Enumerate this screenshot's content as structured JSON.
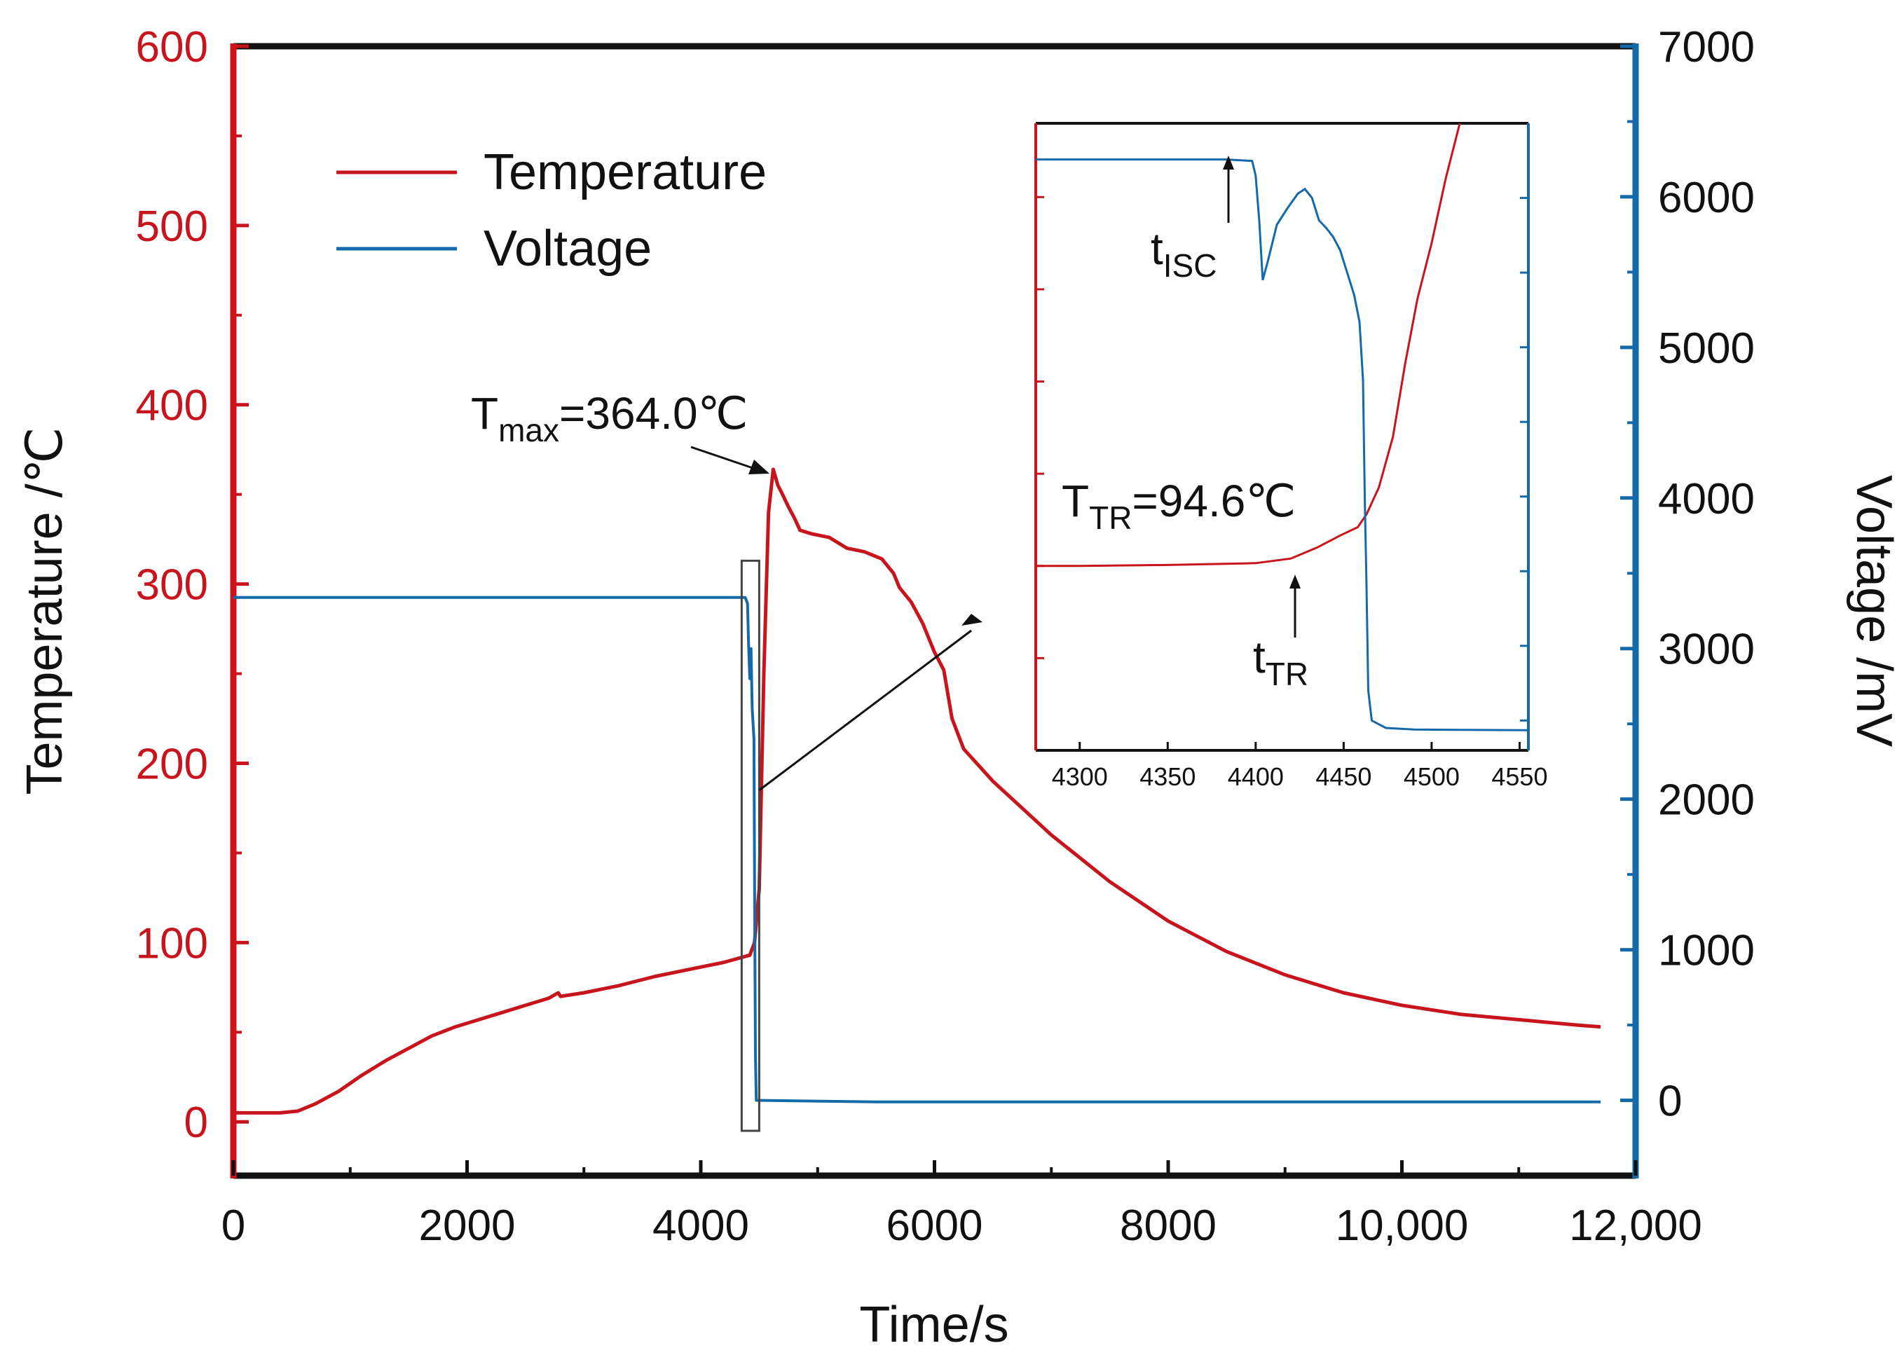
{
  "chart_data": {
    "type": "line",
    "title": "",
    "xlabel": "Time/s",
    "ylabel_left": "Temperature /℃",
    "ylabel_right": "Voltage /mV",
    "xlim": [
      0,
      12000
    ],
    "ylim_left": [
      -30,
      600
    ],
    "ylim_right": [
      -500,
      7000
    ],
    "grid": false,
    "legend_position": "top-left",
    "x_ticks": [
      {
        "value": 0,
        "label": "0"
      },
      {
        "value": 2000,
        "label": "2000"
      },
      {
        "value": 4000,
        "label": "4000"
      },
      {
        "value": 6000,
        "label": "6000"
      },
      {
        "value": 8000,
        "label": "8000"
      },
      {
        "value": 10000,
        "label": "10,000"
      },
      {
        "value": 12000,
        "label": "12,000"
      }
    ],
    "y_left_ticks": [
      {
        "value": 0,
        "label": "0"
      },
      {
        "value": 100,
        "label": "100"
      },
      {
        "value": 200,
        "label": "200"
      },
      {
        "value": 300,
        "label": "300"
      },
      {
        "value": 400,
        "label": "400"
      },
      {
        "value": 500,
        "label": "500"
      },
      {
        "value": 600,
        "label": "600"
      }
    ],
    "y_right_ticks": [
      {
        "value": 0,
        "label": "0"
      },
      {
        "value": 1000,
        "label": "1000"
      },
      {
        "value": 2000,
        "label": "2000"
      },
      {
        "value": 3000,
        "label": "3000"
      },
      {
        "value": 4000,
        "label": "4000"
      },
      {
        "value": 5000,
        "label": "5000"
      },
      {
        "value": 6000,
        "label": "6000"
      },
      {
        "value": 7000,
        "label": "7000"
      }
    ],
    "series": [
      {
        "name": "Temperature",
        "axis": "left",
        "color": "#c8141c",
        "points": [
          [
            0,
            5
          ],
          [
            400,
            5
          ],
          [
            550,
            6
          ],
          [
            700,
            10
          ],
          [
            900,
            17
          ],
          [
            1100,
            26
          ],
          [
            1300,
            34
          ],
          [
            1500,
            41
          ],
          [
            1700,
            48
          ],
          [
            1900,
            53
          ],
          [
            2100,
            57
          ],
          [
            2300,
            61
          ],
          [
            2500,
            65
          ],
          [
            2700,
            69
          ],
          [
            2780,
            72
          ],
          [
            2800,
            70
          ],
          [
            3000,
            72
          ],
          [
            3300,
            76
          ],
          [
            3600,
            81
          ],
          [
            3900,
            85
          ],
          [
            4200,
            89
          ],
          [
            4420,
            93
          ],
          [
            4460,
            100
          ],
          [
            4500,
            130
          ],
          [
            4540,
            250
          ],
          [
            4580,
            340
          ],
          [
            4620,
            364
          ],
          [
            4660,
            355
          ],
          [
            4700,
            350
          ],
          [
            4750,
            343
          ],
          [
            4800,
            337
          ],
          [
            4850,
            330
          ],
          [
            4950,
            328
          ],
          [
            5100,
            326
          ],
          [
            5250,
            320
          ],
          [
            5400,
            318
          ],
          [
            5550,
            314
          ],
          [
            5650,
            306
          ],
          [
            5700,
            298
          ],
          [
            5800,
            290
          ],
          [
            5900,
            278
          ],
          [
            6000,
            262
          ],
          [
            6080,
            252
          ],
          [
            6150,
            225
          ],
          [
            6250,
            208
          ],
          [
            6500,
            190
          ],
          [
            7000,
            160
          ],
          [
            7500,
            134
          ],
          [
            8000,
            112
          ],
          [
            8500,
            95
          ],
          [
            9000,
            82
          ],
          [
            9500,
            72
          ],
          [
            10000,
            65
          ],
          [
            10500,
            60
          ],
          [
            11000,
            57
          ],
          [
            11500,
            54
          ],
          [
            11700,
            53
          ]
        ]
      },
      {
        "name": "Voltage",
        "axis": "right",
        "color": "#1469aa",
        "points": [
          [
            0,
            3340
          ],
          [
            4380,
            3340
          ],
          [
            4400,
            3300
          ],
          [
            4410,
            3000
          ],
          [
            4420,
            2800
          ],
          [
            4430,
            3000
          ],
          [
            4440,
            2600
          ],
          [
            4455,
            2400
          ],
          [
            4462,
            1200
          ],
          [
            4468,
            300
          ],
          [
            4475,
            0
          ],
          [
            5500,
            -10
          ],
          [
            11700,
            -10
          ]
        ]
      }
    ],
    "legend": [
      {
        "name": "Temperature",
        "color": "#c8141c"
      },
      {
        "name": "Voltage",
        "color": "#1469aa"
      }
    ],
    "annotations": {
      "tmax": {
        "symbol": "T",
        "sub": "max",
        "text": "=364.0℃",
        "x": 4620,
        "y": 364
      },
      "zoom_box": {
        "x_range": [
          4350,
          4500
        ],
        "y_range": [
          -5,
          313
        ]
      }
    },
    "inset": {
      "xlim": [
        4275,
        4555
      ],
      "x_ticks": [
        {
          "value": 4300,
          "label": "4300"
        },
        {
          "value": 4350,
          "label": "4350"
        },
        {
          "value": 4400,
          "label": "4400"
        },
        {
          "value": 4450,
          "label": "4450"
        },
        {
          "value": 4500,
          "label": "4500"
        },
        {
          "value": 4550,
          "label": "4550"
        }
      ],
      "temperature": [
        [
          4275,
          80.0
        ],
        [
          4300,
          80.0
        ],
        [
          4350,
          80.1
        ],
        [
          4400,
          80.3
        ],
        [
          4420,
          80.8
        ],
        [
          4435,
          82.0
        ],
        [
          4448,
          83.3
        ],
        [
          4458,
          84.2
        ],
        [
          4463,
          85.6
        ],
        [
          4470,
          88.5
        ],
        [
          4478,
          94.0
        ],
        [
          4485,
          102.0
        ],
        [
          4492,
          109.0
        ],
        [
          4500,
          115.0
        ],
        [
          4508,
          122.0
        ],
        [
          4516,
          128.0
        ]
      ],
      "voltage": [
        [
          4275,
          6258
        ],
        [
          4383,
          6258
        ],
        [
          4398,
          6248
        ],
        [
          4400,
          6150
        ],
        [
          4402,
          5850
        ],
        [
          4404,
          5450
        ],
        [
          4407,
          5580
        ],
        [
          4412,
          5820
        ],
        [
          4418,
          5930
        ],
        [
          4424,
          6030
        ],
        [
          4428,
          6060
        ],
        [
          4432,
          6000
        ],
        [
          4436,
          5850
        ],
        [
          4440,
          5800
        ],
        [
          4444,
          5740
        ],
        [
          4448,
          5650
        ],
        [
          4452,
          5500
        ],
        [
          4456,
          5350
        ],
        [
          4459,
          5170
        ],
        [
          4461,
          4780
        ],
        [
          4462,
          4000
        ],
        [
          4463,
          3400
        ],
        [
          4464,
          2700
        ],
        [
          4466,
          2500
        ],
        [
          4474,
          2450
        ],
        [
          4490,
          2440
        ],
        [
          4510,
          2438
        ],
        [
          4555,
          2435
        ]
      ],
      "tisc": {
        "symbol": "t",
        "sub": "ISC",
        "x": 4383
      },
      "ttr": {
        "symbol": "t",
        "sub": "TR",
        "x": 4421
      },
      "Ttr": {
        "symbol": "T",
        "sub": "TR",
        "text": "=94.6℃"
      }
    }
  },
  "colors": {
    "temperature": "#c8141c",
    "voltage": "#1469aa",
    "frame": "#111111"
  }
}
